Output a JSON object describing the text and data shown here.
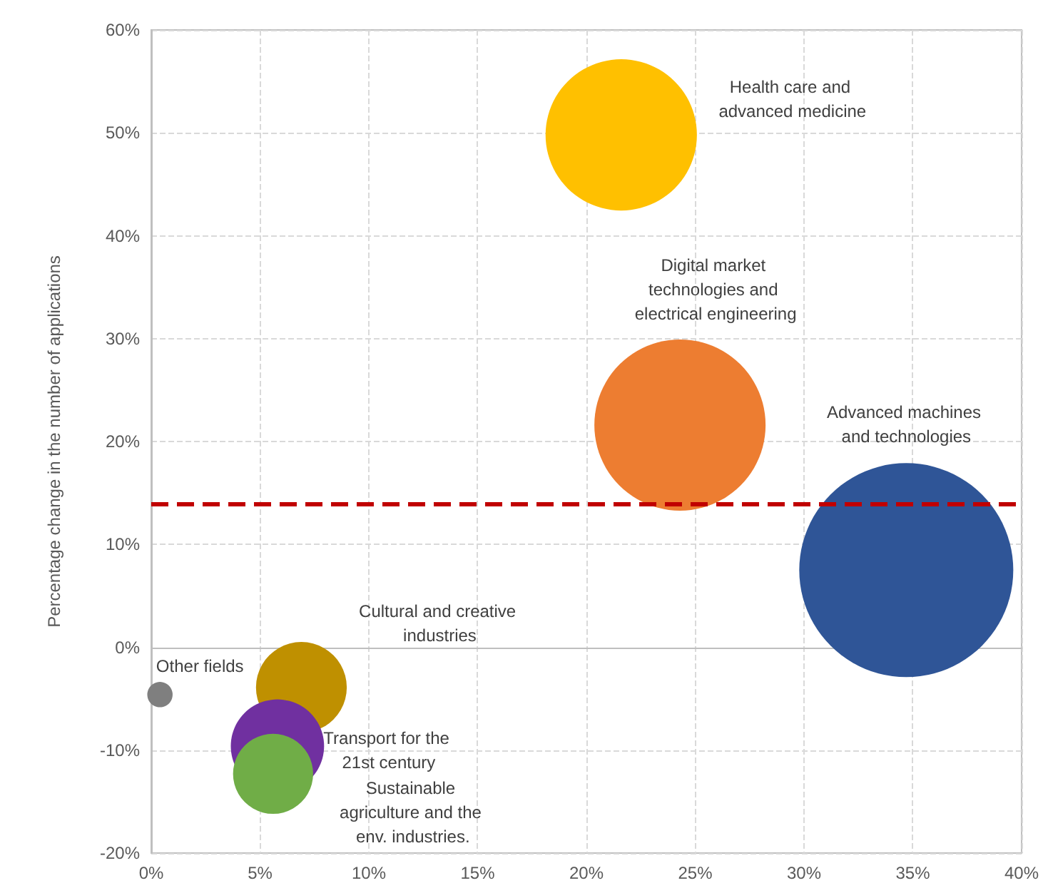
{
  "chart_data": {
    "type": "bubble",
    "ylabel": "Percentage change in the number of applications",
    "xlim": [
      0,
      40
    ],
    "xticks": [
      {
        "value": 0,
        "label": "0%"
      },
      {
        "value": 5,
        "label": "5%"
      },
      {
        "value": 10,
        "label": "10%"
      },
      {
        "value": 15,
        "label": "15%"
      },
      {
        "value": 20,
        "label": "20%"
      },
      {
        "value": 25,
        "label": "25%"
      },
      {
        "value": 30,
        "label": "30%"
      },
      {
        "value": 35,
        "label": "35%"
      },
      {
        "value": 40,
        "label": "40%"
      }
    ],
    "ylim": [
      -20,
      60
    ],
    "yticks": [
      {
        "value": -20,
        "label": "-20%"
      },
      {
        "value": -10,
        "label": "-10%"
      },
      {
        "value": 0,
        "label": "0%"
      },
      {
        "value": 10,
        "label": "10%"
      },
      {
        "value": 20,
        "label": "20%"
      },
      {
        "value": 30,
        "label": "30%"
      },
      {
        "value": 40,
        "label": "40%"
      },
      {
        "value": 50,
        "label": "50%"
      },
      {
        "value": 60,
        "label": "60%"
      }
    ],
    "grid": true,
    "legend": false,
    "series": [
      {
        "name": "Health care and advanced medicine",
        "color": "#ffc000",
        "x": [
          21.6
        ],
        "values": [
          49.8
        ],
        "sizes": [
          0.5
        ]
      },
      {
        "name": "Digital market technologies and electrical engineering",
        "color": "#ed7d31",
        "x": [
          24.3
        ],
        "values": [
          21.6
        ],
        "sizes": [
          0.64
        ]
      },
      {
        "name": "Advanced machines and technologies",
        "color": "#2f5597",
        "x": [
          34.7
        ],
        "values": [
          7.5
        ],
        "sizes": [
          1
        ]
      },
      {
        "name": "Cultural and creative industries",
        "color": "#bf9000",
        "x": [
          6.9
        ],
        "values": [
          -3.9
        ],
        "sizes": [
          0.18
        ]
      },
      {
        "name": "Transport for the 21st century",
        "color": "#7030a0",
        "x": [
          5.8
        ],
        "values": [
          -9.6
        ],
        "sizes": [
          0.19
        ]
      },
      {
        "name": "Sustainable agriculture and the env. industries.",
        "color": "#70ad47",
        "x": [
          5.6
        ],
        "values": [
          -12.3
        ],
        "sizes": [
          0.14
        ]
      },
      {
        "name": "Other fields",
        "color": "#7f7f7f",
        "x": [
          0.4
        ],
        "values": [
          -4.6
        ],
        "sizes": [
          0.014
        ]
      }
    ],
    "ref_lines": [
      {
        "axis": "y",
        "value": 14,
        "color": "#c00000",
        "line_style": "dashed"
      }
    ]
  }
}
